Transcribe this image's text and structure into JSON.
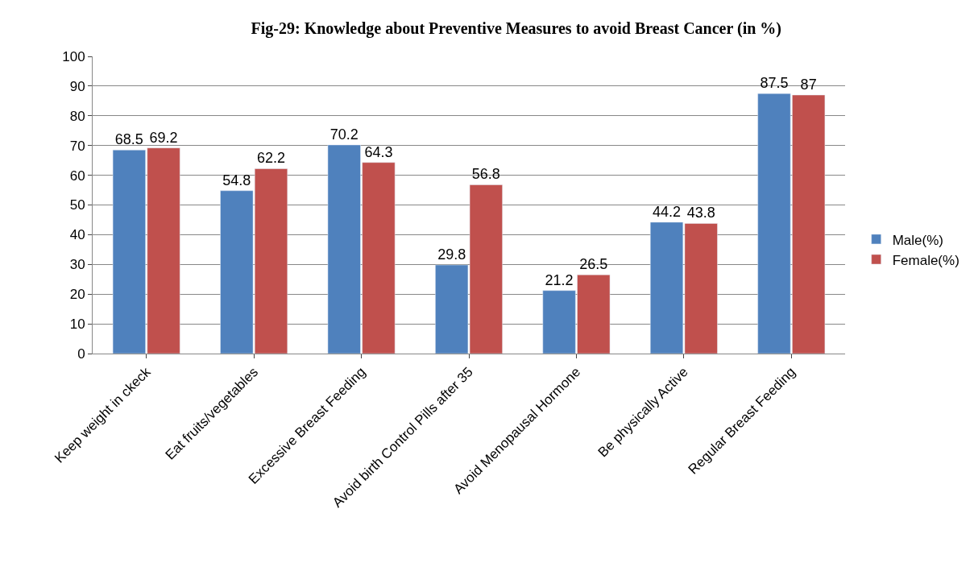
{
  "chart_data": {
    "type": "bar",
    "title": "Fig-29: Knowledge about Preventive Measures to avoid Breast Cancer (in %)",
    "categories": [
      "Keep weight in ckeck",
      "Eat fruits/vegetables",
      "Excessive Breast Feeding",
      "Avoid birth Control Pills after 35",
      "Avoid Menopausal Hormone",
      "Be physically Active",
      "Regular Breast Feeding"
    ],
    "series": [
      {
        "name": "Male(%)",
        "color": "#4f81bd",
        "values": [
          68.5,
          54.8,
          70.2,
          29.8,
          21.2,
          44.2,
          87.5
        ]
      },
      {
        "name": "Female(%)",
        "color": "#c0504d",
        "values": [
          69.2,
          62.2,
          64.3,
          56.8,
          26.5,
          43.8,
          87
        ]
      }
    ],
    "ylim": [
      0,
      100
    ],
    "yticks": [
      0,
      10,
      20,
      30,
      40,
      50,
      60,
      70,
      80,
      90,
      100
    ],
    "grid": "y",
    "legend": "right",
    "data_labels": true
  }
}
